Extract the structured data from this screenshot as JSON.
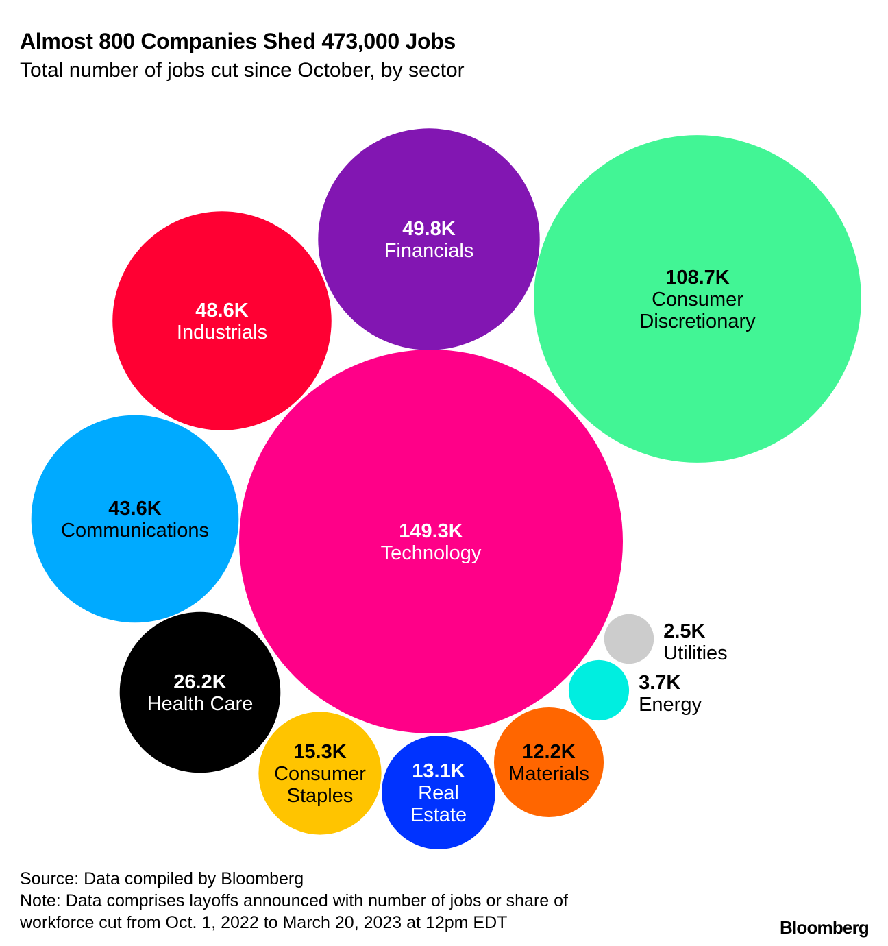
{
  "chart_data": {
    "type": "bubble",
    "title": "Almost 800 Companies Shed 473,000 Jobs",
    "subtitle": "Total number of jobs cut since October, by sector",
    "unit": "thousand jobs",
    "series": [
      {
        "name": "Technology",
        "value": 149.3,
        "label": "149.3K",
        "lines": [
          "Technology"
        ],
        "color": "#ff0088",
        "text_color": "#ffffff"
      },
      {
        "name": "Consumer Discretionary",
        "value": 108.7,
        "label": "108.7K",
        "lines": [
          "Consumer",
          "Discretionary"
        ],
        "color": "#42f595",
        "text_color": "#000000"
      },
      {
        "name": "Financials",
        "value": 49.8,
        "label": "49.8K",
        "lines": [
          "Financials"
        ],
        "color": "#8216b2",
        "text_color": "#ffffff"
      },
      {
        "name": "Industrials",
        "value": 48.6,
        "label": "48.6K",
        "lines": [
          "Industrials"
        ],
        "color": "#ff0033",
        "text_color": "#ffffff"
      },
      {
        "name": "Communications",
        "value": 43.6,
        "label": "43.6K",
        "lines": [
          "Communications"
        ],
        "color": "#00aaff",
        "text_color": "#000000"
      },
      {
        "name": "Health Care",
        "value": 26.2,
        "label": "26.2K",
        "lines": [
          "Health Care"
        ],
        "color": "#000000",
        "text_color": "#ffffff"
      },
      {
        "name": "Consumer Staples",
        "value": 15.3,
        "label": "15.3K",
        "lines": [
          "Consumer",
          "Staples"
        ],
        "color": "#ffc400",
        "text_color": "#000000"
      },
      {
        "name": "Real Estate",
        "value": 13.1,
        "label": "13.1K",
        "lines": [
          "Real",
          "Estate"
        ],
        "color": "#0033ff",
        "text_color": "#ffffff"
      },
      {
        "name": "Materials",
        "value": 12.2,
        "label": "12.2K",
        "lines": [
          "Materials"
        ],
        "color": "#ff6600",
        "text_color": "#000000"
      },
      {
        "name": "Energy",
        "value": 3.7,
        "label": "3.7K",
        "lines": [
          "Energy"
        ],
        "color": "#00eee0",
        "text_color": "#000000"
      },
      {
        "name": "Utilities",
        "value": 2.5,
        "label": "2.5K",
        "lines": [
          "Utilities"
        ],
        "color": "#cccccc",
        "text_color": "#000000"
      }
    ]
  },
  "footer": {
    "source": "Source: Data compiled by Bloomberg",
    "note_line1": "Note: Data comprises layoffs announced with number of jobs or share of",
    "note_line2": "workforce cut from Oct. 1, 2022 to March 20, 2023 at 12pm EDT",
    "brand": "Bloomberg"
  }
}
